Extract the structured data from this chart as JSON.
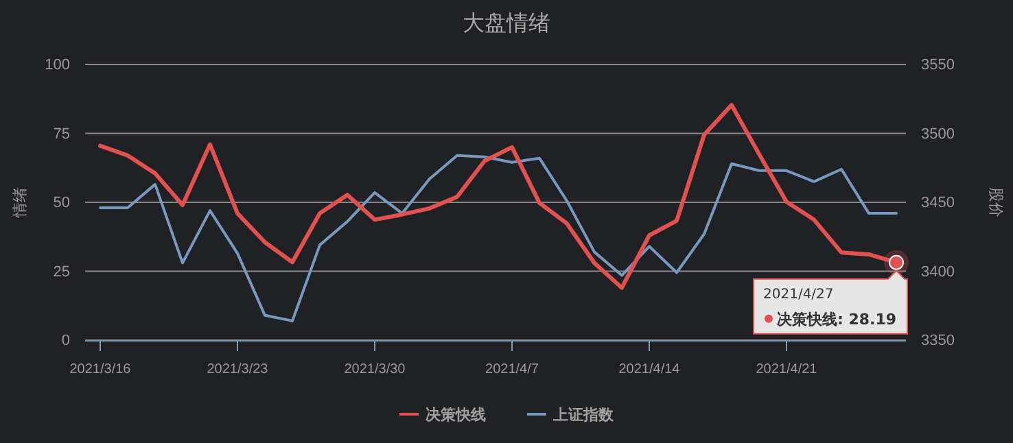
{
  "chart_data": {
    "type": "line",
    "title": "大盘情绪",
    "ylabel": "情绪",
    "y2label": "股价",
    "categories": [
      "2021/3/16",
      null,
      null,
      null,
      null,
      "2021/3/23",
      null,
      null,
      null,
      null,
      "2021/3/30",
      null,
      null,
      null,
      null,
      "2021/4/7",
      null,
      null,
      null,
      null,
      "2021/4/14",
      null,
      null,
      null,
      null,
      "2021/4/21",
      null,
      null,
      null,
      null
    ],
    "series": [
      {
        "name": "决策快线",
        "color": "#e0514f",
        "values": [
          70.5,
          67,
          60.5,
          49,
          71,
          46,
          35.5,
          28.3,
          46,
          52.7,
          43.7,
          45.6,
          47.8,
          52,
          65,
          70,
          49.8,
          42.3,
          28,
          19,
          38,
          43.3,
          74.5,
          85.3,
          67.5,
          50.2,
          43.7,
          31.8,
          31.1,
          28.19
        ]
      },
      {
        "name": "上证指数",
        "color": "#7798bf",
        "axis": "y2",
        "values": [
          3446,
          3446,
          3463,
          3406,
          3444,
          3413,
          3368,
          3364,
          3419,
          3436,
          3457,
          3442,
          3467,
          3484,
          3483,
          3479,
          3482,
          3451,
          3414,
          3397,
          3418,
          3399,
          3427,
          3478,
          3473,
          3473,
          3465,
          3474,
          3442,
          3442
        ]
      }
    ],
    "ylim": [
      0,
      100
    ],
    "yticks": [
      0,
      25,
      50,
      75,
      100
    ],
    "y2lim": [
      3350,
      3550
    ],
    "y2ticks": [
      3350,
      3400,
      3450,
      3500,
      3550
    ],
    "grid": "y",
    "legend": "bottom",
    "marker": "none",
    "line_style": "solid",
    "annotations": [
      "2021/4/27\n决策快线: 28.19"
    ]
  }
}
